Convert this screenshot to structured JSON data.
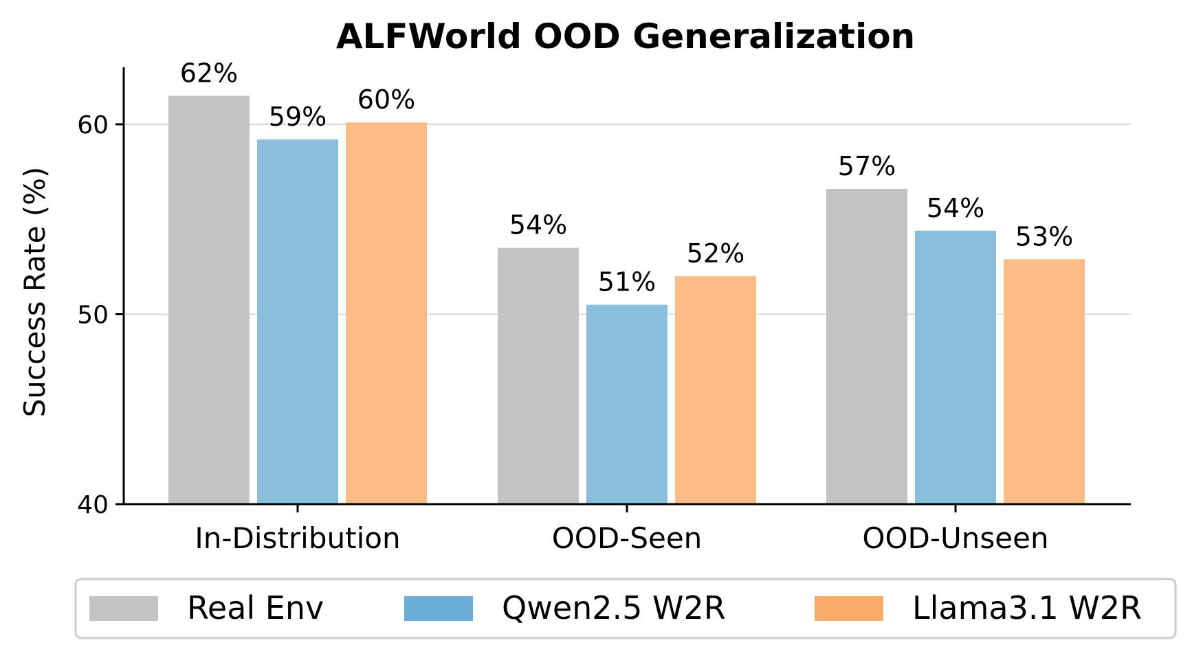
{
  "chart_data": {
    "type": "bar",
    "title": "ALFWorld OOD Generalization",
    "xlabel": "",
    "ylabel": "Success Rate (%)",
    "ylim": [
      40,
      63
    ],
    "yticks": [
      40,
      50,
      60
    ],
    "grid": true,
    "categories": [
      "In-Distribution",
      "OOD-Seen",
      "OOD-Unseen"
    ],
    "series": [
      {
        "name": "Real Env",
        "color": "#c4c4c4",
        "values": [
          61.5,
          53.5,
          56.6
        ],
        "labels": [
          "62%",
          "54%",
          "57%"
        ]
      },
      {
        "name": "Qwen2.5 W2R",
        "color": "#89bedd",
        "values": [
          59.2,
          50.5,
          54.4
        ],
        "labels": [
          "59%",
          "51%",
          "54%"
        ]
      },
      {
        "name": "Llama3.1 W2R",
        "color": "#fbbc86",
        "values": [
          60.1,
          52.0,
          52.9
        ],
        "labels": [
          "60%",
          "52%",
          "53%"
        ]
      }
    ],
    "legend": {
      "placement": "bottom",
      "entries": [
        "Real Env",
        "Qwen2.5 W2R",
        "Llama3.1 W2R"
      ],
      "colors": [
        "#c4c4c4",
        "#6aaed6",
        "#fbab6c"
      ]
    }
  }
}
